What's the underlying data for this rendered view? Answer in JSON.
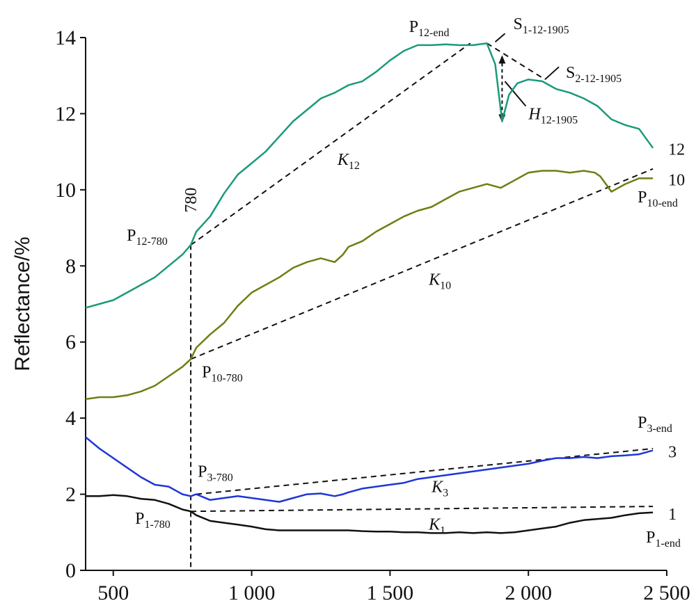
{
  "chart_data": {
    "type": "line",
    "title": "",
    "xlabel": "",
    "ylabel": "Reflectance/%",
    "xlim": [
      400,
      2500
    ],
    "ylim": [
      0,
      14
    ],
    "xticks": [
      500,
      1000,
      1500,
      2000,
      2500
    ],
    "xtick_labels": [
      "500",
      "1 000",
      "1 500",
      "2 000",
      "2 500"
    ],
    "yticks": [
      0,
      2,
      4,
      6,
      8,
      10,
      12,
      14
    ],
    "ytick_labels": [
      "0",
      "2",
      "4",
      "6",
      "8",
      "10",
      "12",
      "14"
    ],
    "grid": false,
    "legend": "none",
    "series": [
      {
        "name": "12",
        "color": "#1a9a7a",
        "x": [
          400,
          450,
          500,
          550,
          600,
          650,
          700,
          750,
          780,
          800,
          850,
          900,
          950,
          1000,
          1050,
          1100,
          1150,
          1200,
          1250,
          1300,
          1350,
          1400,
          1450,
          1500,
          1550,
          1600,
          1650,
          1700,
          1750,
          1800,
          1850,
          1880,
          1905,
          1930,
          1960,
          2000,
          2050,
          2100,
          2150,
          2200,
          2250,
          2300,
          2350,
          2400,
          2450
        ],
        "values": [
          6.9,
          7.0,
          7.1,
          7.3,
          7.5,
          7.7,
          8.0,
          8.3,
          8.55,
          8.9,
          9.3,
          9.9,
          10.4,
          10.7,
          11.0,
          11.4,
          11.8,
          12.1,
          12.4,
          12.55,
          12.75,
          12.85,
          13.1,
          13.4,
          13.65,
          13.8,
          13.8,
          13.82,
          13.8,
          13.8,
          13.85,
          13.3,
          11.8,
          12.5,
          12.8,
          12.9,
          12.85,
          12.65,
          12.55,
          12.4,
          12.2,
          11.85,
          11.7,
          11.6,
          11.1
        ]
      },
      {
        "name": "10",
        "color": "#6b7f12",
        "x": [
          400,
          450,
          500,
          550,
          600,
          650,
          700,
          750,
          780,
          800,
          850,
          900,
          950,
          1000,
          1050,
          1100,
          1150,
          1200,
          1250,
          1300,
          1330,
          1350,
          1400,
          1450,
          1500,
          1550,
          1600,
          1650,
          1700,
          1750,
          1800,
          1850,
          1900,
          1950,
          2000,
          2050,
          2100,
          2150,
          2200,
          2240,
          2260,
          2300,
          2350,
          2400,
          2450
        ],
        "values": [
          4.5,
          4.55,
          4.55,
          4.6,
          4.7,
          4.85,
          5.1,
          5.35,
          5.55,
          5.85,
          6.2,
          6.5,
          6.95,
          7.3,
          7.5,
          7.7,
          7.95,
          8.1,
          8.2,
          8.1,
          8.3,
          8.5,
          8.65,
          8.9,
          9.1,
          9.3,
          9.45,
          9.55,
          9.75,
          9.95,
          10.05,
          10.15,
          10.05,
          10.25,
          10.45,
          10.5,
          10.5,
          10.45,
          10.5,
          10.45,
          10.35,
          9.95,
          10.15,
          10.3,
          10.3
        ]
      },
      {
        "name": "3",
        "color": "#1f36d6",
        "x": [
          400,
          450,
          500,
          550,
          600,
          650,
          700,
          750,
          780,
          800,
          850,
          900,
          950,
          1000,
          1050,
          1100,
          1150,
          1200,
          1250,
          1300,
          1330,
          1350,
          1400,
          1450,
          1500,
          1550,
          1600,
          1650,
          1700,
          1750,
          1800,
          1850,
          1900,
          1950,
          2000,
          2050,
          2100,
          2150,
          2200,
          2250,
          2300,
          2350,
          2400,
          2450
        ],
        "values": [
          3.5,
          3.2,
          2.95,
          2.7,
          2.45,
          2.25,
          2.2,
          2.0,
          1.95,
          2.0,
          1.85,
          1.9,
          1.95,
          1.9,
          1.85,
          1.8,
          1.9,
          2.0,
          2.02,
          1.95,
          2.0,
          2.05,
          2.15,
          2.2,
          2.25,
          2.3,
          2.4,
          2.45,
          2.5,
          2.55,
          2.6,
          2.65,
          2.7,
          2.75,
          2.8,
          2.88,
          2.95,
          2.95,
          2.98,
          2.95,
          3.0,
          3.02,
          3.05,
          3.15
        ]
      },
      {
        "name": "1",
        "color": "#111111",
        "x": [
          400,
          450,
          500,
          550,
          600,
          650,
          700,
          750,
          780,
          800,
          850,
          900,
          950,
          1000,
          1050,
          1100,
          1150,
          1200,
          1250,
          1300,
          1350,
          1400,
          1450,
          1500,
          1550,
          1600,
          1650,
          1700,
          1750,
          1800,
          1850,
          1900,
          1950,
          2000,
          2050,
          2100,
          2150,
          2200,
          2250,
          2300,
          2350,
          2400,
          2450
        ],
        "values": [
          1.95,
          1.95,
          1.98,
          1.95,
          1.88,
          1.85,
          1.75,
          1.6,
          1.55,
          1.45,
          1.3,
          1.25,
          1.2,
          1.15,
          1.08,
          1.05,
          1.05,
          1.05,
          1.05,
          1.05,
          1.05,
          1.03,
          1.02,
          1.02,
          1.0,
          1.0,
          0.98,
          0.98,
          1.0,
          0.98,
          1.0,
          0.98,
          1.0,
          1.05,
          1.1,
          1.15,
          1.25,
          1.32,
          1.35,
          1.38,
          1.45,
          1.5,
          1.52
        ]
      }
    ],
    "reference_line": {
      "x": 780,
      "label": "780"
    },
    "hull_lines": [
      {
        "label_main": "K",
        "label_sub": "12",
        "from": [
          780,
          8.55
        ],
        "to": [
          1790,
          13.85
        ]
      },
      {
        "label_main": "K",
        "label_sub": "10",
        "from": [
          780,
          5.55
        ],
        "to": [
          2450,
          10.55
        ]
      },
      {
        "label_main": "K",
        "label_sub": "3",
        "from": [
          800,
          2.0
        ],
        "to": [
          2450,
          3.2
        ]
      },
      {
        "label_main": "K",
        "label_sub": "1",
        "from": [
          780,
          1.55
        ],
        "to": [
          2450,
          1.68
        ]
      },
      {
        "label_main": "",
        "label_sub": "",
        "from": [
          1850,
          13.85
        ],
        "to": [
          2060,
          12.9
        ]
      }
    ],
    "depth_arrow": {
      "label_main": "H",
      "label_sub": "12-1905",
      "x": 1905,
      "y_from": 13.5,
      "y_to": 11.8
    },
    "annotations": [
      {
        "main": "P",
        "sub": "12-end",
        "x": 1790,
        "y": 13.85
      },
      {
        "main": "S",
        "sub": "1-12-1905",
        "x": 1850,
        "y": 13.85
      },
      {
        "main": "S",
        "sub": "2-12-1905",
        "x": 2060,
        "y": 12.9
      },
      {
        "main": "P",
        "sub": "12-780",
        "x": 780,
        "y": 8.55
      },
      {
        "main": "P",
        "sub": "10-780",
        "x": 780,
        "y": 5.55
      },
      {
        "main": "P",
        "sub": "10-end",
        "x": 2450,
        "y": 10.4
      },
      {
        "main": "P",
        "sub": "3-780",
        "x": 780,
        "y": 1.95
      },
      {
        "main": "P",
        "sub": "3-end",
        "x": 2450,
        "y": 3.2
      },
      {
        "main": "P",
        "sub": "1-780",
        "x": 780,
        "y": 1.55
      },
      {
        "main": "P",
        "sub": "1-end",
        "x": 2450,
        "y": 1.5
      }
    ]
  }
}
